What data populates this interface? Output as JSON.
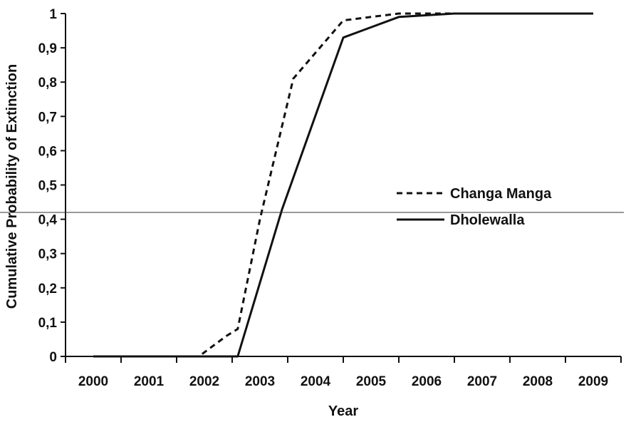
{
  "chart_data": {
    "type": "line",
    "title": "",
    "xlabel": "Year",
    "ylabel": "Cumulative Probability of Extinction",
    "categories": [
      "2000",
      "2001",
      "2002",
      "2003",
      "2004",
      "2005",
      "2006",
      "2007",
      "2008",
      "2009"
    ],
    "y_tick_labels": [
      "0",
      "0,1",
      "0,2",
      "0,3",
      "0,4",
      "0,5",
      "0,6",
      "0,7",
      "0,8",
      "0,9",
      "1"
    ],
    "ylim": [
      0,
      1
    ],
    "grid": false,
    "legend_position": "right",
    "series": [
      {
        "name": "Changa Manga",
        "style": "dashed",
        "color": "#111111",
        "points": [
          {
            "x": 2000,
            "y": 0
          },
          {
            "x": 2001,
            "y": 0
          },
          {
            "x": 2001.9,
            "y": 0
          },
          {
            "x": 2002.4,
            "y": 0.06
          },
          {
            "x": 2002.6,
            "y": 0.08
          },
          {
            "x": 2003.0,
            "y": 0.4
          },
          {
            "x": 2003.6,
            "y": 0.81
          },
          {
            "x": 2004.5,
            "y": 0.98
          },
          {
            "x": 2005.5,
            "y": 1.0
          },
          {
            "x": 2006.5,
            "y": 1.0
          },
          {
            "x": 2009,
            "y": 1.0
          }
        ]
      },
      {
        "name": "Dholewalla",
        "style": "solid",
        "color": "#111111",
        "points": [
          {
            "x": 2000,
            "y": 0
          },
          {
            "x": 2001,
            "y": 0
          },
          {
            "x": 2002,
            "y": 0
          },
          {
            "x": 2002.6,
            "y": 0
          },
          {
            "x": 2003.4,
            "y": 0.43
          },
          {
            "x": 2004.5,
            "y": 0.93
          },
          {
            "x": 2005.5,
            "y": 0.99
          },
          {
            "x": 2006.5,
            "y": 1.0
          },
          {
            "x": 2009,
            "y": 1.0
          }
        ]
      }
    ],
    "reference_line": {
      "y": 0.42
    }
  }
}
